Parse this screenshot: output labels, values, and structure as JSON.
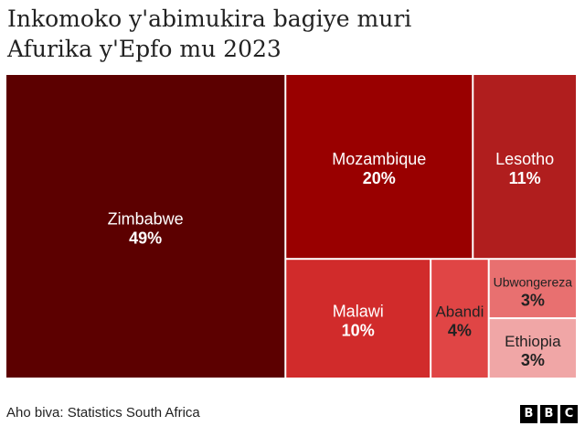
{
  "header": {
    "title_line1": "Inkomoko y'abimukira bagiye muri",
    "title_line2": "Afurika y'Epfo mu 2023"
  },
  "footer": {
    "source": "Aho biva: Statistics South Africa",
    "logo_letters": [
      "B",
      "B",
      "C"
    ]
  },
  "chart_data": {
    "type": "treemap",
    "unit": "%",
    "items": [
      {
        "label": "Zimbabwe",
        "value": 49,
        "value_label": "49%",
        "color": "#5c0000",
        "text_color": "#ffffff"
      },
      {
        "label": "Mozambique",
        "value": 20,
        "value_label": "20%",
        "color": "#990000",
        "text_color": "#ffffff"
      },
      {
        "label": "Lesotho",
        "value": 11,
        "value_label": "11%",
        "color": "#b01e1e",
        "text_color": "#ffffff"
      },
      {
        "label": "Malawi",
        "value": 10,
        "value_label": "10%",
        "color": "#d12b2b",
        "text_color": "#ffffff"
      },
      {
        "label": "Abandi",
        "value": 4,
        "value_label": "4%",
        "color": "#e04545",
        "text_color": "#222222"
      },
      {
        "label": "Ubwongereza",
        "value": 3,
        "value_label": "3%",
        "color": "#e87070",
        "text_color": "#222222"
      },
      {
        "label": "Ethiopia",
        "value": 3,
        "value_label": "3%",
        "color": "#f0a6a6",
        "text_color": "#222222"
      }
    ]
  }
}
